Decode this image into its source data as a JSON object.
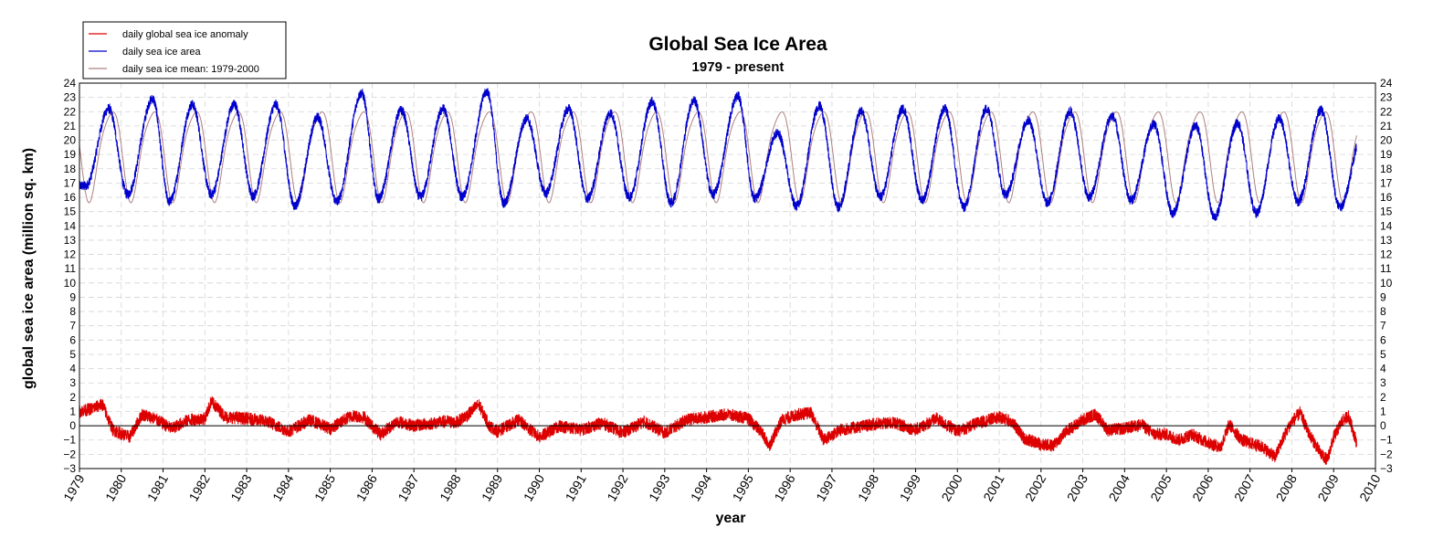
{
  "chart_data": {
    "type": "line",
    "title": "Global Sea Ice Area",
    "subtitle": "1979 - present",
    "xlabel": "year",
    "ylabel": "global sea ice area (million sq. km)",
    "xlim": [
      1979,
      2010
    ],
    "ylim": [
      -3,
      24
    ],
    "x_ticks": [
      1979,
      1980,
      1981,
      1982,
      1983,
      1984,
      1985,
      1986,
      1987,
      1988,
      1989,
      1990,
      1991,
      1992,
      1993,
      1994,
      1995,
      1996,
      1997,
      1998,
      1999,
      2000,
      2001,
      2002,
      2003,
      2004,
      2005,
      2006,
      2007,
      2008,
      2009,
      2010
    ],
    "y_ticks": [
      -3,
      -2,
      -1,
      0,
      1,
      2,
      3,
      4,
      5,
      6,
      7,
      8,
      9,
      10,
      11,
      12,
      13,
      14,
      15,
      16,
      17,
      18,
      19,
      20,
      21,
      22,
      23,
      24
    ],
    "grid": true,
    "legend_position": "top-left",
    "zero_line": 0,
    "x_end": 2009.55,
    "series": [
      {
        "name": "daily global sea ice anomaly",
        "color": "#dd0000",
        "style": "anomaly",
        "points": [
          [
            1979.0,
            1.0
          ],
          [
            1979.3,
            1.2
          ],
          [
            1979.55,
            1.5
          ],
          [
            1979.8,
            -0.3
          ],
          [
            1980.2,
            -0.8
          ],
          [
            1980.5,
            0.8
          ],
          [
            1980.8,
            0.5
          ],
          [
            1981.2,
            -0.2
          ],
          [
            1981.6,
            0.4
          ],
          [
            1982.0,
            0.5
          ],
          [
            1982.15,
            1.7
          ],
          [
            1982.5,
            0.6
          ],
          [
            1983.0,
            0.5
          ],
          [
            1983.5,
            0.3
          ],
          [
            1984.0,
            -0.4
          ],
          [
            1984.5,
            0.4
          ],
          [
            1985.0,
            -0.2
          ],
          [
            1985.5,
            0.7
          ],
          [
            1985.8,
            0.6
          ],
          [
            1986.2,
            -0.6
          ],
          [
            1986.6,
            0.3
          ],
          [
            1987.0,
            0.0
          ],
          [
            1987.5,
            0.2
          ],
          [
            1987.8,
            0.3
          ],
          [
            1988.0,
            0.2
          ],
          [
            1988.3,
            0.8
          ],
          [
            1988.55,
            1.5
          ],
          [
            1988.8,
            0.0
          ],
          [
            1989.0,
            -0.4
          ],
          [
            1989.5,
            0.4
          ],
          [
            1990.0,
            -0.8
          ],
          [
            1990.5,
            0.0
          ],
          [
            1991.0,
            -0.3
          ],
          [
            1991.5,
            0.2
          ],
          [
            1992.0,
            -0.5
          ],
          [
            1992.5,
            0.3
          ],
          [
            1993.0,
            -0.5
          ],
          [
            1993.5,
            0.4
          ],
          [
            1994.0,
            0.6
          ],
          [
            1994.5,
            0.8
          ],
          [
            1995.0,
            0.5
          ],
          [
            1995.3,
            -0.4
          ],
          [
            1995.5,
            -1.4
          ],
          [
            1995.8,
            0.4
          ],
          [
            1996.2,
            0.8
          ],
          [
            1996.5,
            0.9
          ],
          [
            1996.8,
            -1.0
          ],
          [
            1997.2,
            -0.3
          ],
          [
            1997.6,
            -0.1
          ],
          [
            1998.0,
            0.1
          ],
          [
            1998.5,
            0.2
          ],
          [
            1999.0,
            -0.3
          ],
          [
            1999.5,
            0.5
          ],
          [
            2000.0,
            -0.4
          ],
          [
            2000.5,
            0.2
          ],
          [
            2001.0,
            0.6
          ],
          [
            2001.3,
            0.3
          ],
          [
            2001.6,
            -0.9
          ],
          [
            2002.0,
            -1.3
          ],
          [
            2002.3,
            -1.4
          ],
          [
            2002.6,
            -0.4
          ],
          [
            2003.0,
            0.4
          ],
          [
            2003.3,
            0.8
          ],
          [
            2003.6,
            -0.3
          ],
          [
            2004.0,
            -0.2
          ],
          [
            2004.4,
            0.1
          ],
          [
            2004.7,
            -0.6
          ],
          [
            2005.0,
            -0.6
          ],
          [
            2005.3,
            -1.0
          ],
          [
            2005.6,
            -0.6
          ],
          [
            2006.0,
            -1.2
          ],
          [
            2006.3,
            -1.5
          ],
          [
            2006.5,
            0.1
          ],
          [
            2006.8,
            -1.0
          ],
          [
            2007.0,
            -1.2
          ],
          [
            2007.3,
            -1.5
          ],
          [
            2007.6,
            -2.2
          ],
          [
            2007.8,
            -0.8
          ],
          [
            2008.0,
            0.3
          ],
          [
            2008.2,
            0.9
          ],
          [
            2008.4,
            -0.5
          ],
          [
            2008.7,
            -2.0
          ],
          [
            2008.85,
            -2.4
          ],
          [
            2009.0,
            -0.8
          ],
          [
            2009.2,
            0.3
          ],
          [
            2009.35,
            0.7
          ],
          [
            2009.45,
            -0.2
          ],
          [
            2009.55,
            -1.2
          ]
        ]
      },
      {
        "name": "daily sea ice area",
        "color": "#0000cc",
        "style": "seasonal",
        "peaks": [
          [
            1979.7,
            22.2
          ],
          [
            1980.75,
            22.9
          ],
          [
            1981.7,
            22.5
          ],
          [
            1982.7,
            22.5
          ],
          [
            1983.7,
            22.5
          ],
          [
            1984.7,
            21.6
          ],
          [
            1985.75,
            23.3
          ],
          [
            1986.7,
            22.1
          ],
          [
            1987.7,
            22.2
          ],
          [
            1988.75,
            23.4
          ],
          [
            1989.7,
            21.5
          ],
          [
            1990.7,
            22.2
          ],
          [
            1991.7,
            21.9
          ],
          [
            1992.7,
            22.7
          ],
          [
            1993.7,
            22.8
          ],
          [
            1994.75,
            23.1
          ],
          [
            1995.7,
            20.5
          ],
          [
            1996.7,
            22.4
          ],
          [
            1997.7,
            22.0
          ],
          [
            1998.7,
            22.2
          ],
          [
            1999.7,
            22.2
          ],
          [
            2000.7,
            22.2
          ],
          [
            2001.7,
            21.4
          ],
          [
            2002.7,
            22.0
          ],
          [
            2003.7,
            21.7
          ],
          [
            2004.7,
            21.1
          ],
          [
            2005.7,
            21.0
          ],
          [
            2006.7,
            21.2
          ],
          [
            2007.7,
            21.5
          ],
          [
            2008.7,
            22.1
          ],
          [
            2009.7,
            20.5
          ]
        ],
        "troughs": [
          [
            1979.15,
            16.8
          ],
          [
            1980.15,
            16.2
          ],
          [
            1981.15,
            15.7
          ],
          [
            1982.15,
            16.2
          ],
          [
            1983.15,
            16.1
          ],
          [
            1984.15,
            15.4
          ],
          [
            1985.15,
            15.7
          ],
          [
            1986.15,
            15.9
          ],
          [
            1987.15,
            16.0
          ],
          [
            1988.15,
            16.0
          ],
          [
            1989.15,
            15.6
          ],
          [
            1990.15,
            16.3
          ],
          [
            1991.15,
            15.9
          ],
          [
            1992.15,
            16.0
          ],
          [
            1993.15,
            15.6
          ],
          [
            1994.15,
            16.2
          ],
          [
            1995.15,
            15.9
          ],
          [
            1996.15,
            15.4
          ],
          [
            1997.15,
            15.3
          ],
          [
            1998.15,
            16.0
          ],
          [
            1999.15,
            15.8
          ],
          [
            2000.15,
            15.3
          ],
          [
            2001.15,
            16.2
          ],
          [
            2002.15,
            15.6
          ],
          [
            2003.15,
            16.0
          ],
          [
            2004.15,
            15.8
          ],
          [
            2005.15,
            14.9
          ],
          [
            2006.15,
            14.6
          ],
          [
            2007.15,
            14.9
          ],
          [
            2008.15,
            15.7
          ],
          [
            2009.15,
            15.3
          ]
        ]
      },
      {
        "name": "daily sea ice mean: 1979-2000",
        "color": "#b08080",
        "style": "climatology",
        "peak": 22.3,
        "trough": 16.1,
        "secondary_peak": 20.6
      }
    ]
  }
}
